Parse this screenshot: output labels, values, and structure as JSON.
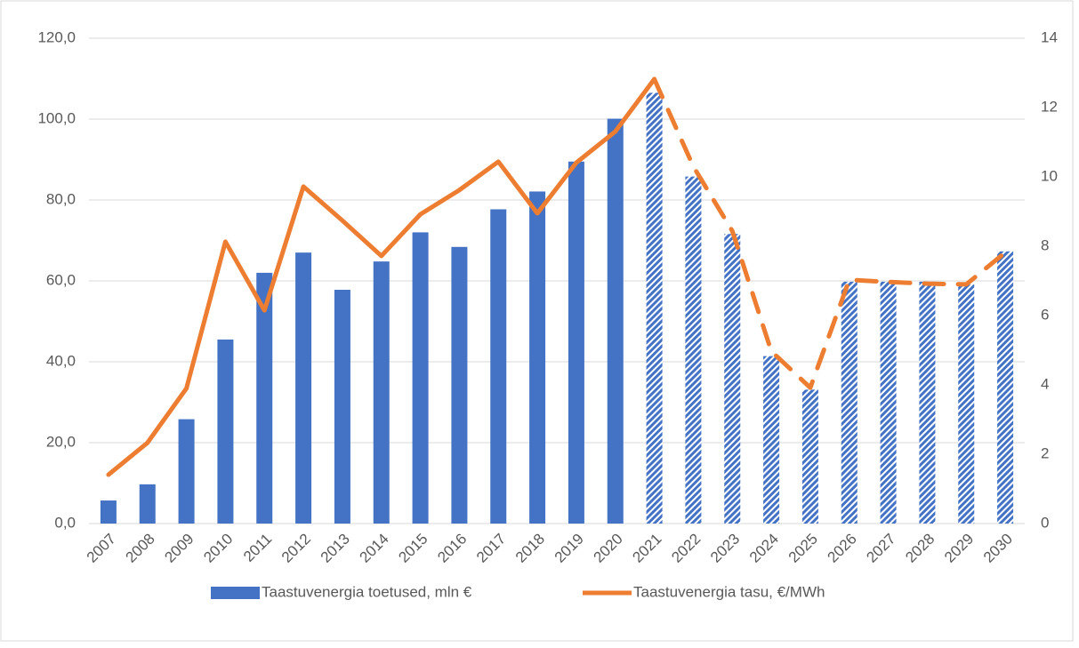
{
  "chart_data": {
    "type": "bar_line",
    "categories": [
      "2007",
      "2008",
      "2009",
      "2010",
      "2011",
      "2012",
      "2013",
      "2014",
      "2015",
      "2016",
      "2017",
      "2018",
      "2019",
      "2020",
      "2021",
      "2022",
      "2023",
      "2024",
      "2025",
      "2026",
      "2027",
      "2028",
      "2029",
      "2030"
    ],
    "series": [
      {
        "name": "Taastuvenergia toetused, mln €",
        "type": "bar",
        "color": "#4472c4",
        "axis": "y",
        "values": [
          5.7,
          9.7,
          25.8,
          45.5,
          62.0,
          67.0,
          57.8,
          64.8,
          72.0,
          68.4,
          77.7,
          82.1,
          89.5,
          100.1,
          106.5,
          85.8,
          71.6,
          41.4,
          33.1,
          59.8,
          59.8,
          59.8,
          59.1,
          67.3
        ]
      },
      {
        "name": "Taastuvenergia tasu, €/MWh",
        "type": "line",
        "color": "#ed7d31",
        "axis": "y2",
        "values": [
          1.41,
          2.33,
          3.9,
          8.13,
          6.15,
          9.72,
          8.74,
          7.72,
          8.92,
          9.62,
          10.44,
          8.95,
          10.41,
          11.31,
          12.82,
          10.3,
          8.44,
          4.97,
          3.92,
          7.03,
          6.97,
          6.92,
          6.9,
          7.82
        ]
      }
    ],
    "forecast_from": "2021",
    "ylim": [
      0,
      120
    ],
    "yticks": [
      {
        "value": 0,
        "label": "0,0"
      },
      {
        "value": 20,
        "label": "20,0"
      },
      {
        "value": 40,
        "label": "40,0"
      },
      {
        "value": 60,
        "label": "60,0"
      },
      {
        "value": 80,
        "label": "80,0"
      },
      {
        "value": 100,
        "label": "100,0"
      },
      {
        "value": 120,
        "label": "120,0"
      }
    ],
    "y2lim": [
      0,
      14
    ],
    "y2ticks": [
      0,
      2,
      4,
      6,
      8,
      10,
      12,
      14
    ],
    "grid": true,
    "legend": "bottom"
  }
}
